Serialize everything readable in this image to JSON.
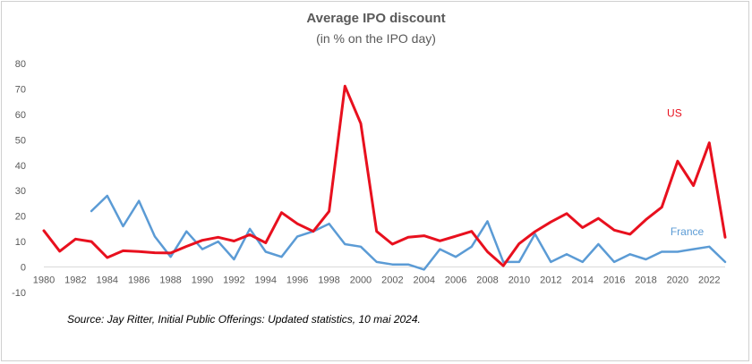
{
  "chart_data": {
    "type": "line",
    "title": "Average IPO discount",
    "subtitle": "(in % on the IPO day)",
    "source": "Source: Jay Ritter, Initial Public Offerings: Updated statistics, 10 mai 2024.",
    "xlabel": "",
    "ylabel": "",
    "ylim": [
      -10,
      80
    ],
    "yticks": [
      "80",
      "70",
      "60",
      "50",
      "40",
      "30",
      "20",
      "10",
      "0",
      "-10"
    ],
    "xticks": [
      "1980",
      "1982",
      "1984",
      "1986",
      "1988",
      "1990",
      "1992",
      "1994",
      "1996",
      "1998",
      "2000",
      "2002",
      "2004",
      "2006",
      "2008",
      "2010",
      "2012",
      "2014",
      "2016",
      "2018",
      "2020",
      "2022"
    ],
    "grid": false,
    "legend": "inline labels",
    "series": [
      {
        "name": "US",
        "color": "#e8101e",
        "x": [
          1980,
          1981,
          1982,
          1983,
          1984,
          1985,
          1986,
          1987,
          1988,
          1989,
          1990,
          1991,
          1992,
          1993,
          1994,
          1995,
          1996,
          1997,
          1998,
          1999,
          2000,
          2001,
          2002,
          2003,
          2004,
          2005,
          2006,
          2007,
          2008,
          2009,
          2010,
          2011,
          2012,
          2013,
          2014,
          2015,
          2016,
          2017,
          2018,
          2019,
          2020,
          2021,
          2022,
          2023
        ],
        "values": [
          14.3,
          6.2,
          11,
          10,
          3.7,
          6.4,
          6.1,
          5.6,
          5.5,
          8.1,
          10.5,
          11.7,
          10.2,
          12.7,
          9.5,
          21.4,
          17,
          14,
          21.9,
          71.1,
          56.4,
          14,
          9,
          11.7,
          12.3,
          10.3,
          12.1,
          14,
          6,
          0.5,
          9.2,
          13.9,
          17.7,
          21,
          15.5,
          19.1,
          14.5,
          12.9,
          18.6,
          23.5,
          41.6,
          32,
          48.8,
          11.7
        ]
      },
      {
        "name": "France",
        "color": "#5b9bd5",
        "x": [
          1983,
          1984,
          1985,
          1986,
          1987,
          1988,
          1989,
          1990,
          1991,
          1992,
          1993,
          1994,
          1995,
          1996,
          1997,
          1998,
          1999,
          2000,
          2001,
          2002,
          2003,
          2004,
          2005,
          2006,
          2007,
          2008,
          2009,
          2010,
          2011,
          2012,
          2013,
          2014,
          2015,
          2016,
          2017,
          2018,
          2019,
          2020,
          2021,
          2022,
          2023
        ],
        "values": [
          22,
          28,
          16,
          26,
          12,
          4,
          14,
          7,
          10,
          3,
          15,
          6,
          4,
          12,
          14,
          17,
          9,
          8,
          2,
          1,
          1,
          -1,
          7,
          4,
          8,
          18,
          2,
          2,
          13,
          2,
          5,
          2,
          9,
          2,
          5,
          3,
          6,
          6,
          7,
          8,
          2
        ]
      }
    ]
  }
}
